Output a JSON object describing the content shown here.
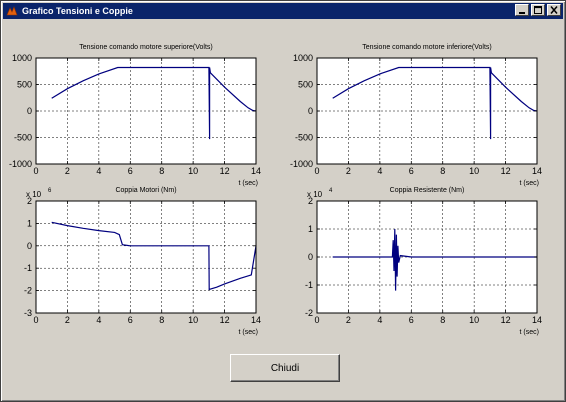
{
  "window": {
    "title": "Grafico Tensioni e Coppie"
  },
  "close_button": {
    "label": "Chiudi"
  },
  "colors": {
    "line": "#00007f",
    "background": "#d4d0c8",
    "titlebar": "#0a246a"
  },
  "chart_data": [
    {
      "type": "line",
      "title": "Tensione comando motore superiore(Volts)",
      "xlabel": "t (sec)",
      "ylabel": "",
      "xlim": [
        0,
        14
      ],
      "ylim": [
        -1000,
        1000
      ],
      "xticks": [
        0,
        2,
        4,
        6,
        8,
        10,
        12,
        14
      ],
      "yticks": [
        -1000,
        -500,
        0,
        500,
        1000
      ],
      "grid": true,
      "series": [
        {
          "x": [
            1,
            2,
            3,
            4,
            5.2,
            6,
            8,
            10,
            11,
            11.05,
            11.05,
            11.1,
            12,
            13,
            13.5,
            13.8,
            14
          ],
          "y": [
            240,
            420,
            570,
            700,
            820,
            820,
            820,
            820,
            820,
            -530,
            820,
            720,
            450,
            180,
            60,
            10,
            0
          ]
        }
      ]
    },
    {
      "type": "line",
      "title": "Tensione comando motore inferiore(Volts)",
      "xlabel": "t (sec)",
      "ylabel": "",
      "xlim": [
        0,
        14
      ],
      "ylim": [
        -1000,
        1000
      ],
      "xticks": [
        0,
        2,
        4,
        6,
        8,
        10,
        12,
        14
      ],
      "yticks": [
        -1000,
        -500,
        0,
        500,
        1000
      ],
      "grid": true,
      "series": [
        {
          "x": [
            1,
            2,
            3,
            4,
            5.2,
            6,
            8,
            10,
            11,
            11.05,
            11.05,
            11.1,
            12,
            13,
            13.5,
            13.8,
            14
          ],
          "y": [
            240,
            420,
            570,
            700,
            820,
            820,
            820,
            820,
            820,
            -530,
            820,
            720,
            450,
            180,
            60,
            10,
            0
          ]
        }
      ]
    },
    {
      "type": "line",
      "title": "Coppia Motori (Nm)",
      "xlabel": "t (sec)",
      "ylabel": "",
      "exponent": "x 10",
      "exponent_power": "6",
      "xlim": [
        0,
        14
      ],
      "ylim": [
        -3,
        2
      ],
      "xticks": [
        0,
        2,
        4,
        6,
        8,
        10,
        12,
        14
      ],
      "yticks": [
        -3,
        -2,
        -1,
        0,
        1,
        2
      ],
      "grid": true,
      "series": [
        {
          "x": [
            1,
            2,
            3,
            4,
            5,
            5.3,
            5.5,
            6,
            8,
            10,
            11,
            11.02,
            11.5,
            12,
            13,
            13.7,
            14
          ],
          "y": [
            1.05,
            0.9,
            0.78,
            0.68,
            0.6,
            0.5,
            0.05,
            0,
            0,
            0,
            0,
            -1.95,
            -1.85,
            -1.7,
            -1.45,
            -1.3,
            0
          ]
        }
      ]
    },
    {
      "type": "line",
      "title": "Coppia Resistente (Nm)",
      "xlabel": "t (sec)",
      "ylabel": "",
      "exponent": "x 10",
      "exponent_power": "4",
      "xlim": [
        0,
        14
      ],
      "ylim": [
        -2,
        2
      ],
      "xticks": [
        0,
        2,
        4,
        6,
        8,
        10,
        12,
        14
      ],
      "yticks": [
        -2,
        -1,
        0,
        1,
        2
      ],
      "grid": true,
      "series": [
        {
          "x": [
            1,
            4,
            4.8,
            4.85,
            4.9,
            4.95,
            5.0,
            5.05,
            5.1,
            5.15,
            5.2,
            5.3,
            6,
            14
          ],
          "y": [
            0,
            0,
            0,
            0.6,
            -0.5,
            1.0,
            -1.2,
            0.8,
            -0.7,
            0.4,
            -0.2,
            0.05,
            0,
            0
          ]
        }
      ]
    }
  ]
}
